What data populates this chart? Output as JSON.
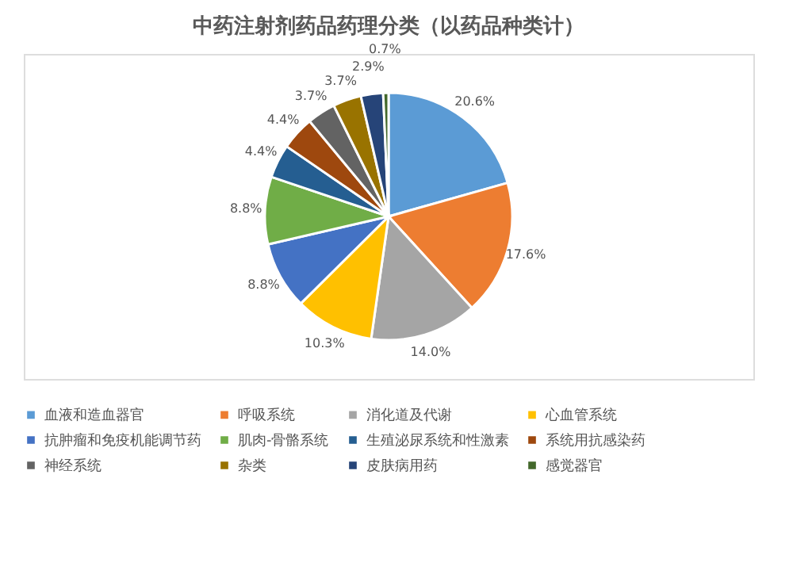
{
  "chart_data": {
    "type": "pie",
    "title": "中药注射剂药品药理分类（以药品种类计）",
    "categories": [
      "血液和造血器官",
      "呼吸系统",
      "消化道及代谢",
      "心血管系统",
      "抗肿瘤和免疫机能调节药",
      "肌肉-骨骼系统",
      "生殖泌尿系统和性激素",
      "系统用抗感染药",
      "神经系统",
      "杂类",
      "皮肤病用药",
      "感觉器官"
    ],
    "values": [
      20.6,
      17.6,
      14.0,
      10.3,
      8.8,
      8.8,
      4.4,
      4.4,
      3.7,
      3.7,
      2.9,
      0.7
    ],
    "value_labels": [
      "20.6%",
      "17.6%",
      "14.0%",
      "10.3%",
      "8.8%",
      "8.8%",
      "4.4%",
      "4.4%",
      "3.7%",
      "3.7%",
      "2.9%",
      "0.7%"
    ],
    "colors": [
      "#5b9bd5",
      "#ed7d31",
      "#a5a5a5",
      "#ffc000",
      "#4472c4",
      "#70ad47",
      "#255e91",
      "#9e480e",
      "#636363",
      "#997300",
      "#264478",
      "#43682b"
    ],
    "legend": "bottom"
  }
}
